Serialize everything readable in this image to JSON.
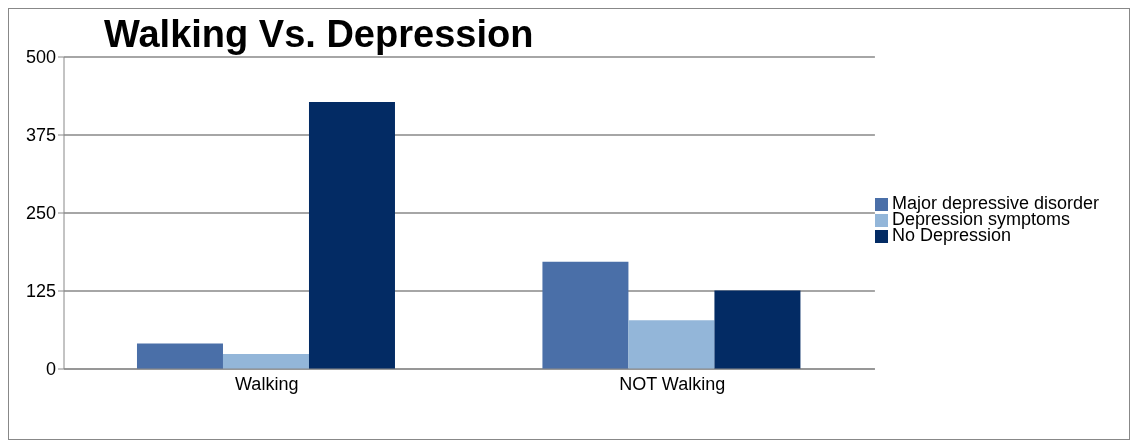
{
  "chart_data": {
    "type": "bar",
    "title": "Walking Vs. Depression",
    "categories": [
      "Walking",
      "NOT Walking"
    ],
    "series": [
      {
        "name": "Major depressive disorder",
        "color": "#4a6fa8",
        "values": [
          41,
          172
        ]
      },
      {
        "name": "Depression symptoms",
        "color": "#93b6d9",
        "values": [
          24,
          78
        ]
      },
      {
        "name": "No Depression",
        "color": "#032b64",
        "values": [
          428,
          126
        ]
      }
    ],
    "ylim": [
      0,
      500
    ],
    "yticks": [
      0,
      125,
      250,
      375,
      500
    ],
    "grid": "y",
    "legend": "right"
  }
}
